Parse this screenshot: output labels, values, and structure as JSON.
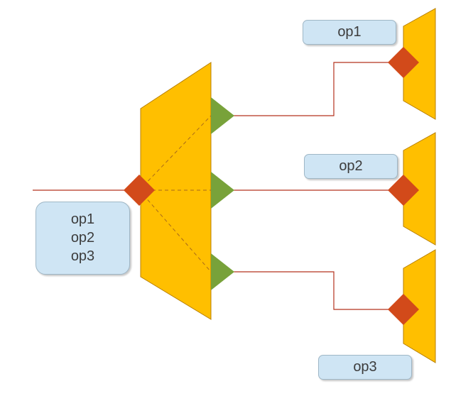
{
  "colors": {
    "trapezoid_fill": "#ffbf00",
    "trapezoid_stroke": "#b87f00",
    "connector_fill": "#d24a1a",
    "output_triangle_fill": "#78a23a",
    "wire": "#b5331f",
    "label_fill": "#cfe5f4"
  },
  "labels": {
    "splitter_ops": [
      "op1",
      "op2",
      "op3"
    ],
    "sink_1": "op1",
    "sink_2": "op2",
    "sink_3": "op3"
  }
}
